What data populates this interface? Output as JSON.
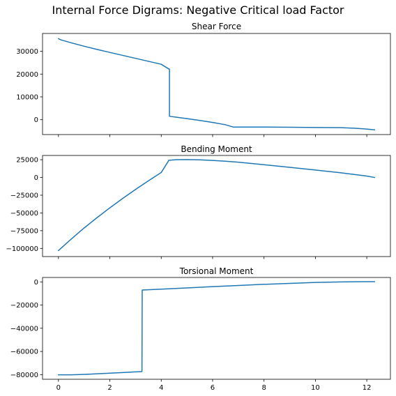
{
  "suptitle": "Internal Force Digrams: Negative Critical load Factor",
  "line_color": "#1f77b4",
  "chart_data": [
    {
      "type": "line",
      "title": "Shear Force",
      "xlabel": "",
      "ylabel": "",
      "xlim": [
        -0.62,
        12.92
      ],
      "ylim": [
        -6500,
        37800
      ],
      "xticks": [
        0,
        2,
        4,
        6,
        8,
        10,
        12
      ],
      "show_xtick_labels": false,
      "yticks": [
        0,
        10000,
        20000,
        30000
      ],
      "ytick_labels": [
        "0",
        "10000",
        "20000",
        "30000"
      ],
      "grid": false,
      "x": [
        0,
        0.1,
        0.5,
        1,
        1.5,
        2,
        2.5,
        3,
        3.5,
        4,
        4.3,
        4.32,
        4.32,
        5,
        5.5,
        6,
        6.5,
        6.8,
        8,
        9,
        10,
        11,
        11.5,
        12,
        12.3
      ],
      "y": [
        35500,
        35000,
        33700,
        32200,
        30800,
        29500,
        28200,
        26900,
        25600,
        24300,
        22200,
        22200,
        1500,
        500,
        -300,
        -1200,
        -2200,
        -3200,
        -3200,
        -3300,
        -3400,
        -3500,
        -3700,
        -4100,
        -4400
      ]
    },
    {
      "type": "line",
      "title": "Bending Moment",
      "xlabel": "",
      "ylabel": "",
      "xlim": [
        -0.62,
        12.92
      ],
      "ylim": [
        -111500,
        31000
      ],
      "xticks": [
        0,
        2,
        4,
        6,
        8,
        10,
        12
      ],
      "show_xtick_labels": false,
      "yticks": [
        -100000,
        -75000,
        -50000,
        -25000,
        0,
        25000
      ],
      "ytick_labels": [
        "−100000",
        "−75000",
        "−50000",
        "−25000",
        "0",
        "25000"
      ],
      "grid": false,
      "x": [
        0,
        0.5,
        1,
        1.5,
        2,
        2.5,
        3,
        3.5,
        4,
        4.3,
        4.6,
        5,
        5.5,
        6,
        6.5,
        7,
        8,
        9,
        10,
        11,
        12,
        12.3
      ],
      "y": [
        -103000,
        -86700,
        -71200,
        -56700,
        -42800,
        -29600,
        -16900,
        -4700,
        7000,
        24300,
        25100,
        25200,
        24900,
        24000,
        22900,
        21500,
        18000,
        14300,
        10500,
        6600,
        2000,
        0
      ]
    },
    {
      "type": "line",
      "title": "Torsional Moment",
      "xlabel": "",
      "ylabel": "",
      "xlim": [
        -0.62,
        12.92
      ],
      "ylim": [
        -84000,
        3800
      ],
      "xticks": [
        0,
        2,
        4,
        6,
        8,
        10,
        12
      ],
      "xtick_labels": [
        "0",
        "2",
        "4",
        "6",
        "8",
        "10",
        "12"
      ],
      "show_xtick_labels": true,
      "yticks": [
        -80000,
        -60000,
        -40000,
        -20000,
        0
      ],
      "ytick_labels": [
        "−80000",
        "−60000",
        "−40000",
        "−20000",
        "0"
      ],
      "grid": false,
      "x": [
        0,
        0.5,
        1,
        1.5,
        2,
        2.5,
        3,
        3.25,
        3.26,
        4,
        5,
        6,
        7,
        8,
        9,
        10,
        11,
        12,
        12.3
      ],
      "y": [
        -80200,
        -80200,
        -79800,
        -79300,
        -78700,
        -78200,
        -77600,
        -77400,
        -7000,
        -6300,
        -5200,
        -4100,
        -3100,
        -2100,
        -1300,
        -500,
        0,
        200,
        200
      ]
    }
  ]
}
